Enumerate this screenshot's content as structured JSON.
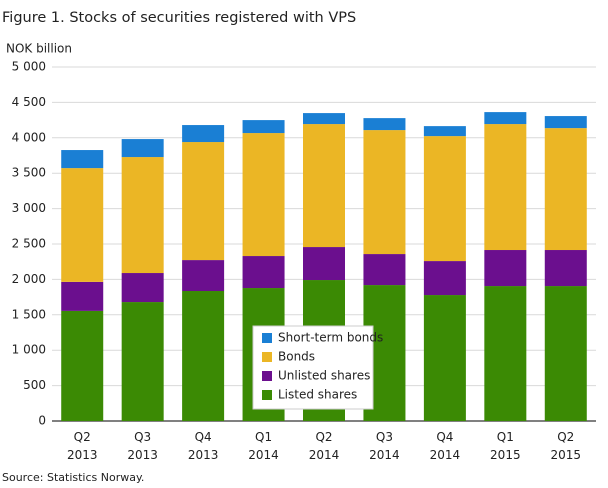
{
  "chart_data": {
    "type": "stacked-bar",
    "title": "Figure 1. Stocks of securities registered with VPS",
    "y_axis_label": "NOK billion",
    "source": "Source: Statistics Norway.",
    "categories": [
      "Q2 2013",
      "Q3 2013",
      "Q4 2013",
      "Q1 2014",
      "Q2 2014",
      "Q3 2014",
      "Q4 2014",
      "Q1 2015",
      "Q2 2015"
    ],
    "series": [
      {
        "name": "Listed shares",
        "color": "#3b8a04",
        "values": [
          1555,
          1680,
          1836,
          1878,
          1991,
          1920,
          1779,
          1906,
          1906
        ]
      },
      {
        "name": "Unlisted shares",
        "color": "#6b0f8e",
        "values": [
          410,
          410,
          437,
          452,
          466,
          438,
          480,
          509,
          509
        ]
      },
      {
        "name": "Bonds",
        "color": "#ebb625",
        "values": [
          1607,
          1638,
          1667,
          1737,
          1737,
          1751,
          1765,
          1779,
          1722
        ]
      },
      {
        "name": "Short-term bonds",
        "color": "#1a7fd4",
        "values": [
          255,
          254,
          240,
          183,
          155,
          169,
          141,
          169,
          170
        ]
      }
    ],
    "ylim": [
      0,
      5000
    ],
    "yticks": [
      0,
      500,
      {
        "value": 1000,
        "label": "1 000"
      },
      {
        "value": 1500,
        "label": "1 500"
      },
      {
        "value": 2000,
        "label": "2 000"
      },
      {
        "value": 2500,
        "label": "2 500"
      },
      {
        "value": 3000,
        "label": "3 000"
      },
      {
        "value": 3500,
        "label": "3 500"
      },
      {
        "value": 4000,
        "label": "4 000"
      },
      {
        "value": 4500,
        "label": "4 500"
      },
      {
        "value": 5000,
        "label": "5 000"
      }
    ],
    "grid": true
  }
}
